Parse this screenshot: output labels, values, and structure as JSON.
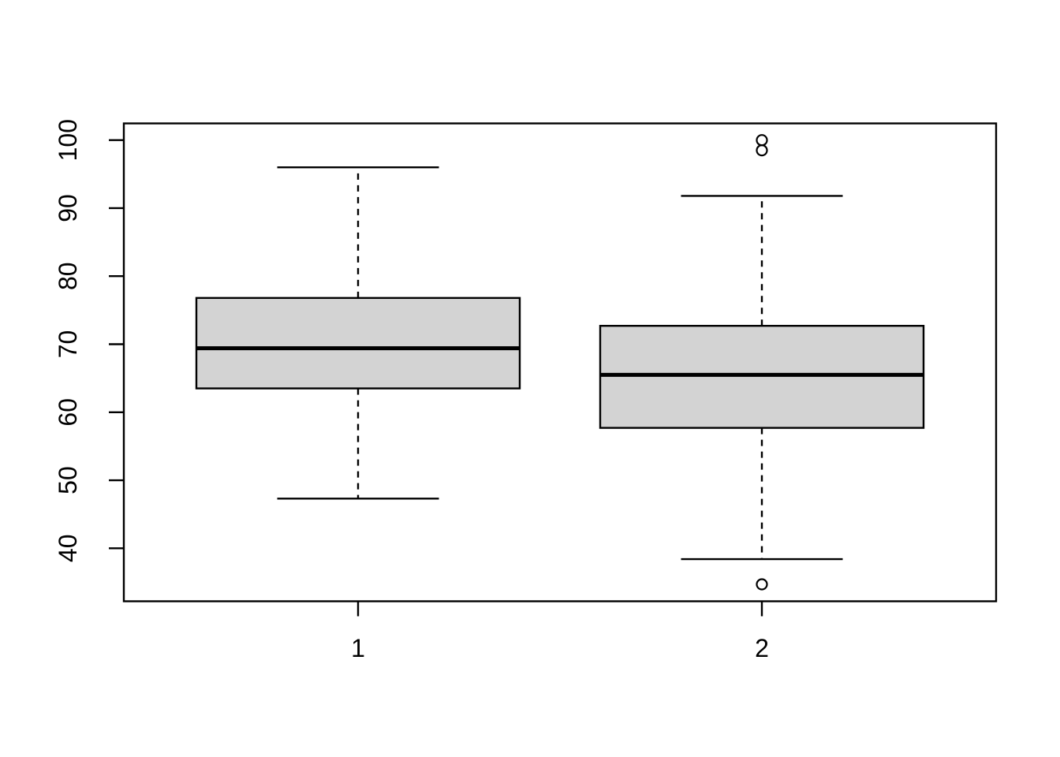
{
  "figure": {
    "background_color": "#ffffff",
    "box_fill_color": "#d3d3d3",
    "line_color": "#000000"
  },
  "chart_data": {
    "type": "boxplot",
    "title": "",
    "xlabel": "",
    "ylabel": "",
    "categories": [
      "1",
      "2"
    ],
    "y_axis": {
      "ticks": [
        40,
        50,
        60,
        70,
        80,
        90,
        100
      ],
      "tick_labels": [
        "40",
        "50",
        "60",
        "70",
        "80",
        "90",
        "100"
      ],
      "range": [
        32,
        103
      ],
      "label_rotation_deg": -90
    },
    "grid": false,
    "legend": false,
    "series": [
      {
        "group": "1",
        "lower_whisker": 47.3,
        "q1": 63.5,
        "median": 69.4,
        "q3": 76.8,
        "upper_whisker": 96.0,
        "outliers": []
      },
      {
        "group": "2",
        "lower_whisker": 38.4,
        "q1": 57.7,
        "median": 65.5,
        "q3": 72.7,
        "upper_whisker": 91.8,
        "outliers": [
          100,
          98.5,
          34.7
        ]
      }
    ]
  }
}
